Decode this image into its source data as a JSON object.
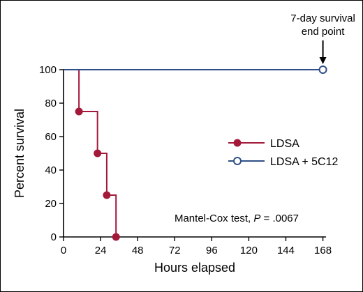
{
  "chart_data": {
    "type": "line",
    "step": true,
    "xlabel": "Hours elapsed",
    "ylabel": "Percent survival",
    "xlim": [
      0,
      170
    ],
    "ylim": [
      0,
      100
    ],
    "xticks": [
      0,
      24,
      48,
      72,
      96,
      120,
      144,
      168
    ],
    "yticks": [
      0,
      20,
      40,
      60,
      80,
      100
    ],
    "grid": false,
    "legend": "center-right",
    "series": [
      {
        "name": "LDSA",
        "color": "#a3193a",
        "marker": "filled-circle",
        "x": [
          0,
          10,
          22,
          28,
          34
        ],
        "y": [
          100,
          75,
          50,
          25,
          0
        ],
        "markers_x": [
          10,
          22,
          28,
          34
        ],
        "markers_y": [
          75,
          50,
          25,
          0
        ]
      },
      {
        "name": "LDSA + 5C12",
        "color": "#2f4f86",
        "marker": "open-circle",
        "x": [
          0,
          168
        ],
        "y": [
          100,
          100
        ],
        "markers_x": [
          168
        ],
        "markers_y": [
          100
        ]
      }
    ],
    "annotations": {
      "endpoint_line1": "7-day survival",
      "endpoint_line2": "end point",
      "endpoint_x": 168,
      "test_prefix": "Mantel-Cox test, ",
      "test_p": "P",
      "test_suffix": " = .0067"
    }
  }
}
